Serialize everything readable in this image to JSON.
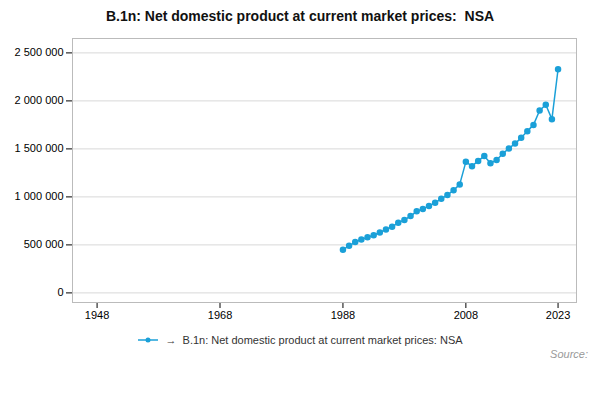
{
  "chart_data": {
    "type": "line",
    "title": "B.1n: Net domestic product at current market prices:  NSA",
    "caption": "Source:",
    "x": [
      1988,
      1989,
      1990,
      1991,
      1992,
      1993,
      1994,
      1995,
      1996,
      1997,
      1998,
      1999,
      2000,
      2001,
      2002,
      2003,
      2004,
      2005,
      2006,
      2007,
      2008,
      2009,
      2010,
      2011,
      2012,
      2013,
      2014,
      2015,
      2016,
      2017,
      2018,
      2019,
      2020,
      2021,
      2022,
      2023
    ],
    "series": [
      {
        "name": "→  B.1n: Net domestic product at current market prices: NSA",
        "color": "#1ba0d8",
        "marker": "circle",
        "values": [
          450000,
          490000,
          530000,
          555000,
          580000,
          600000,
          630000,
          660000,
          690000,
          730000,
          760000,
          800000,
          850000,
          875000,
          905000,
          940000,
          980000,
          1020000,
          1070000,
          1130000,
          1365000,
          1320000,
          1375000,
          1425000,
          1350000,
          1385000,
          1450000,
          1505000,
          1555000,
          1615000,
          1685000,
          1750000,
          1900000,
          1960000,
          1810000,
          2330000
        ]
      }
    ],
    "xlim": [
      1944,
      2026
    ],
    "xticks": [
      1948,
      1968,
      1988,
      2008,
      2023
    ],
    "ylim": [
      -100000,
      2650000
    ],
    "yticks": [
      0,
      {
        "value": 500000,
        "label": "500 000"
      },
      {
        "value": 1000000,
        "label": "1 000 000"
      },
      {
        "value": 1500000,
        "label": "1 500 000"
      },
      {
        "value": 2000000,
        "label": "2 000 000"
      },
      {
        "value": 2500000,
        "label": "2 500 000"
      }
    ],
    "grid": true,
    "legend": "bottom"
  }
}
